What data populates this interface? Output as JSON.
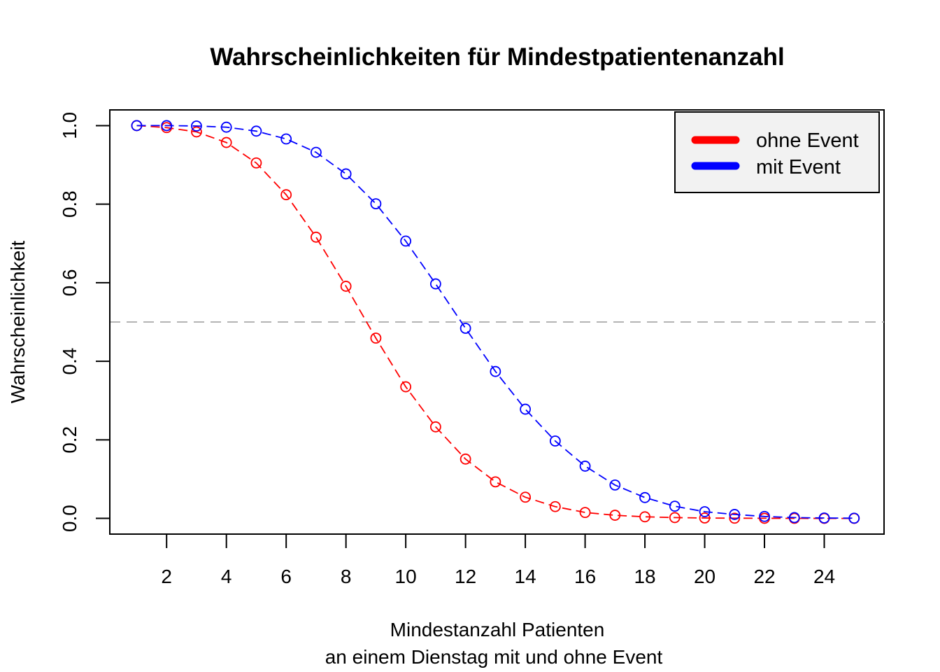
{
  "chart_data": {
    "type": "line",
    "title": "Wahrscheinlichkeiten für Mindestpatientenanzahl",
    "xlabel_line1": "Mindestanzahl Patienten",
    "xlabel_line2": "an einem Dienstag mit und ohne Event",
    "ylabel": "Wahrscheinlichkeit",
    "xlim": [
      0.1,
      26.0
    ],
    "ylim": [
      -0.04,
      1.04
    ],
    "x_ticks": [
      "2",
      "4",
      "6",
      "8",
      "10",
      "12",
      "14",
      "16",
      "18",
      "20",
      "22",
      "24"
    ],
    "y_ticks": [
      "0.0",
      "0.2",
      "0.4",
      "0.6",
      "0.8",
      "1.0"
    ],
    "reference_line": {
      "y": 0.5,
      "color": "#b3b3b3",
      "style": "dashed"
    },
    "legend": {
      "position": "top-right",
      "entries": [
        {
          "label": "ohne Event",
          "color": "#ff0000"
        },
        {
          "label": "mit Event",
          "color": "#0000ff"
        }
      ]
    },
    "x": [
      1,
      2,
      3,
      4,
      5,
      6,
      7,
      8,
      9,
      10,
      11,
      12,
      13,
      14,
      15,
      16,
      17,
      18,
      19,
      20,
      21,
      22,
      23,
      24,
      25
    ],
    "series": [
      {
        "name": "ohne Event",
        "color": "#ff0000",
        "values": [
          1.0,
          0.995,
          0.984,
          0.957,
          0.905,
          0.824,
          0.716,
          0.591,
          0.459,
          0.335,
          0.233,
          0.151,
          0.093,
          0.054,
          0.03,
          0.015,
          0.008,
          0.004,
          0.002,
          0.001,
          0.0005,
          0.0002,
          0.0001,
          0.0,
          0.0
        ]
      },
      {
        "name": "mit Event",
        "color": "#0000ff",
        "values": [
          1.0,
          1.0,
          0.999,
          0.996,
          0.986,
          0.966,
          0.932,
          0.877,
          0.801,
          0.706,
          0.597,
          0.484,
          0.374,
          0.278,
          0.197,
          0.133,
          0.085,
          0.053,
          0.031,
          0.017,
          0.01,
          0.005,
          0.002,
          0.001,
          0.0005
        ]
      }
    ]
  }
}
